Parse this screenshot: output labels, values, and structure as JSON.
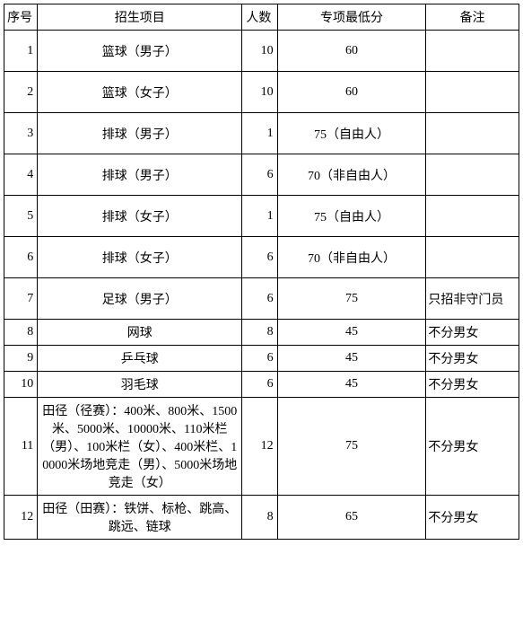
{
  "table": {
    "columns": [
      {
        "key": "idx",
        "label": "序号"
      },
      {
        "key": "item",
        "label": "招生项目"
      },
      {
        "key": "count",
        "label": "人数"
      },
      {
        "key": "score",
        "label": "专项最低分"
      },
      {
        "key": "note",
        "label": "备注"
      }
    ],
    "rows": [
      {
        "idx": "1",
        "item": "篮球（男子）",
        "count": "10",
        "score": "60",
        "note": "",
        "height": "tall"
      },
      {
        "idx": "2",
        "item": "篮球（女子）",
        "count": "10",
        "score": "60",
        "note": "",
        "height": "tall"
      },
      {
        "idx": "3",
        "item": "排球（男子）",
        "count": "1",
        "score": "75（自由人）",
        "note": "",
        "height": "tall"
      },
      {
        "idx": "4",
        "item": "排球（男子）",
        "count": "6",
        "score": "70（非自由人）",
        "note": "",
        "height": "tall"
      },
      {
        "idx": "5",
        "item": "排球（女子）",
        "count": "1",
        "score": "75（自由人）",
        "note": "",
        "height": "tall"
      },
      {
        "idx": "6",
        "item": "排球（女子）",
        "count": "6",
        "score": "70（非自由人）",
        "note": "",
        "height": "tall"
      },
      {
        "idx": "7",
        "item": "足球（男子）",
        "count": "6",
        "score": "75",
        "note": "只招非守门员",
        "height": "tall"
      },
      {
        "idx": "8",
        "item": "网球",
        "count": "8",
        "score": "45",
        "note": "不分男女",
        "height": "short"
      },
      {
        "idx": "9",
        "item": "乒乓球",
        "count": "6",
        "score": "45",
        "note": "不分男女",
        "height": "short"
      },
      {
        "idx": "10",
        "item": "羽毛球",
        "count": "6",
        "score": "45",
        "note": "不分男女",
        "height": "short"
      },
      {
        "idx": "11",
        "item": "田径（径赛）：400米、800米、1500米、5000米、10000米、110米栏（男）、100米栏（女）、400米栏、10000米场地竞走（男）、5000米场地竞走（女）",
        "count": "12",
        "score": "75",
        "note": "不分男女",
        "height": "tall"
      },
      {
        "idx": "12",
        "item": "田径（田赛）：铁饼、标枪、跳高、跳远、链球",
        "count": "8",
        "score": "65",
        "note": "不分男女",
        "height": "tall"
      }
    ],
    "style": {
      "border_color": "#000000",
      "background_color": "#ffffff",
      "text_color": "#000000",
      "font_size_pt": 10.5,
      "font_family": "SimSun"
    }
  }
}
